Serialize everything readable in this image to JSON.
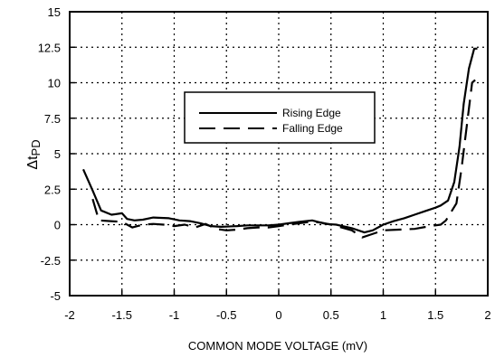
{
  "chart_data": {
    "type": "line",
    "title": "",
    "xlabel": "COMMON MODE VOLTAGE (mV)",
    "ylabel_symbol": "Δt",
    "ylabel_subscript": "PD",
    "xlim": [
      -2,
      2
    ],
    "ylim": [
      -5,
      15
    ],
    "x_ticks": [
      -2,
      -1.5,
      -1,
      -0.5,
      0,
      0.5,
      1,
      1.5,
      2
    ],
    "y_ticks": [
      -5,
      -2.5,
      0,
      2.5,
      5,
      7.5,
      10,
      12.5,
      15
    ],
    "x_tick_labels": [
      "-2",
      "-1.5",
      "-1",
      "-0.5",
      "0",
      "0.5",
      "1",
      "1.5",
      "2"
    ],
    "y_tick_labels": [
      "-5",
      "-2.5",
      "0",
      "2.5",
      "5",
      "7.5",
      "10",
      "12.5",
      "15"
    ],
    "grid": true,
    "legend_position": "center",
    "series": [
      {
        "name": "Rising Edge",
        "style": "solid",
        "color": "#000000",
        "x": [
          -1.87,
          -1.78,
          -1.7,
          -1.6,
          -1.5,
          -1.45,
          -1.38,
          -1.3,
          -1.2,
          -1.05,
          -0.95,
          -0.85,
          -0.75,
          -0.65,
          -0.55,
          -0.4,
          -0.3,
          -0.2,
          -0.1,
          0,
          0.1,
          0.2,
          0.32,
          0.45,
          0.55,
          0.7,
          0.82,
          0.9,
          1,
          1.1,
          1.2,
          1.3,
          1.4,
          1.5,
          1.55,
          1.62,
          1.68,
          1.73,
          1.77,
          1.82,
          1.87,
          1.9
        ],
        "values": [
          3.9,
          2.4,
          1.0,
          0.7,
          0.8,
          0.4,
          0.3,
          0.35,
          0.5,
          0.45,
          0.3,
          0.25,
          0.1,
          -0.1,
          -0.15,
          -0.1,
          -0.05,
          -0.05,
          -0.05,
          0,
          0.1,
          0.2,
          0.3,
          0.05,
          0.0,
          -0.25,
          -0.55,
          -0.4,
          0.0,
          0.25,
          0.45,
          0.7,
          0.95,
          1.2,
          1.35,
          1.7,
          3.0,
          5.5,
          8.5,
          11.0,
          12.4,
          12.4
        ]
      },
      {
        "name": "Falling Edge",
        "style": "dashed",
        "color": "#000000",
        "x": [
          -1.78,
          -1.72,
          -1.5,
          -1.4,
          -1.3,
          -1.2,
          -1.1,
          -1.0,
          -0.9,
          -0.8,
          -0.7,
          -0.6,
          -0.5,
          -0.4,
          -0.3,
          -0.2,
          -0.1,
          0,
          0.1,
          0.2,
          0.3,
          0.4,
          0.5,
          0.6,
          0.7,
          0.8,
          0.88,
          1.0,
          1.15,
          1.3,
          1.45,
          1.55,
          1.6,
          1.7,
          1.75,
          1.8,
          1.85,
          1.88
        ],
        "values": [
          1.8,
          0.3,
          0.2,
          -0.2,
          0.0,
          0.05,
          0.0,
          -0.1,
          0.0,
          -0.2,
          0.05,
          -0.3,
          -0.4,
          -0.35,
          -0.25,
          -0.2,
          -0.2,
          -0.1,
          0.0,
          0.1,
          0.2,
          0.15,
          0.0,
          -0.2,
          -0.4,
          -0.9,
          -0.7,
          -0.4,
          -0.35,
          -0.3,
          -0.1,
          0.0,
          0.3,
          1.5,
          4.0,
          7.0,
          10.0,
          10.2
        ]
      }
    ]
  }
}
